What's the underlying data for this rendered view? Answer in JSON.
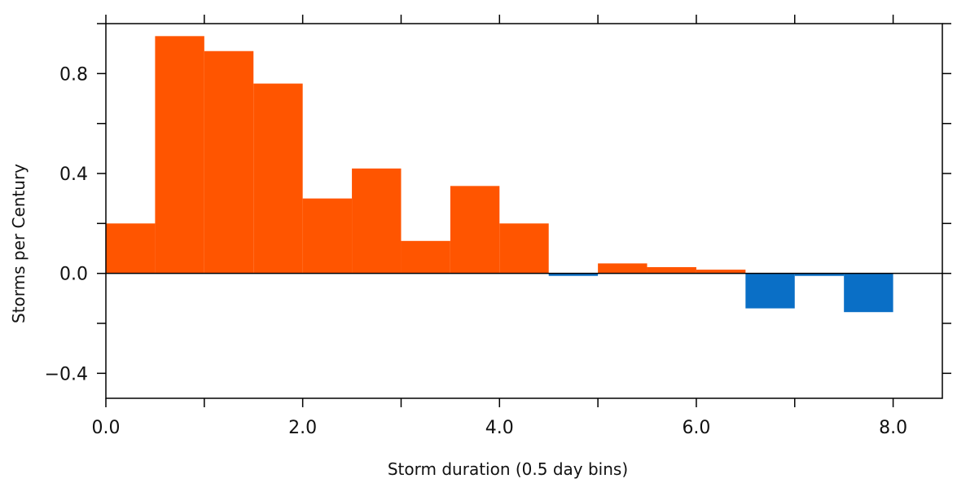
{
  "chart_data": {
    "type": "bar",
    "bin_width": 0.5,
    "x": [
      0.0,
      0.5,
      1.0,
      1.5,
      2.0,
      2.5,
      3.0,
      3.5,
      4.0,
      4.5,
      5.0,
      5.5,
      6.0,
      6.5,
      7.0,
      7.5
    ],
    "values": [
      0.2,
      0.95,
      0.89,
      0.76,
      0.3,
      0.42,
      0.13,
      0.35,
      0.2,
      -0.01,
      0.04,
      0.025,
      0.015,
      -0.14,
      -0.01,
      -0.155
    ],
    "xlabel": "Storm duration (0.5 day bins)",
    "ylabel": "Storms per Century",
    "xlim": [
      0.0,
      8.5
    ],
    "ylim": [
      -0.5,
      1.0
    ],
    "x_ticks": [
      0.0,
      2.0,
      4.0,
      6.0,
      8.0
    ],
    "x_tick_labels": [
      "0.0",
      "2.0",
      "4.0",
      "6.0",
      "8.0"
    ],
    "x_minor_ticks": [
      1.0,
      3.0,
      5.0,
      7.0
    ],
    "y_ticks": [
      -0.4,
      0.0,
      0.4,
      0.8
    ],
    "y_tick_labels": [
      "−0.4",
      "0.0",
      "0.4",
      "0.8"
    ],
    "y_minor_ticks": [
      -0.2,
      0.2,
      0.6,
      1.0
    ],
    "grid": false,
    "colors": {
      "positive": "#ff5500",
      "negative": "#0a6fc6",
      "axis": "#000000"
    }
  }
}
